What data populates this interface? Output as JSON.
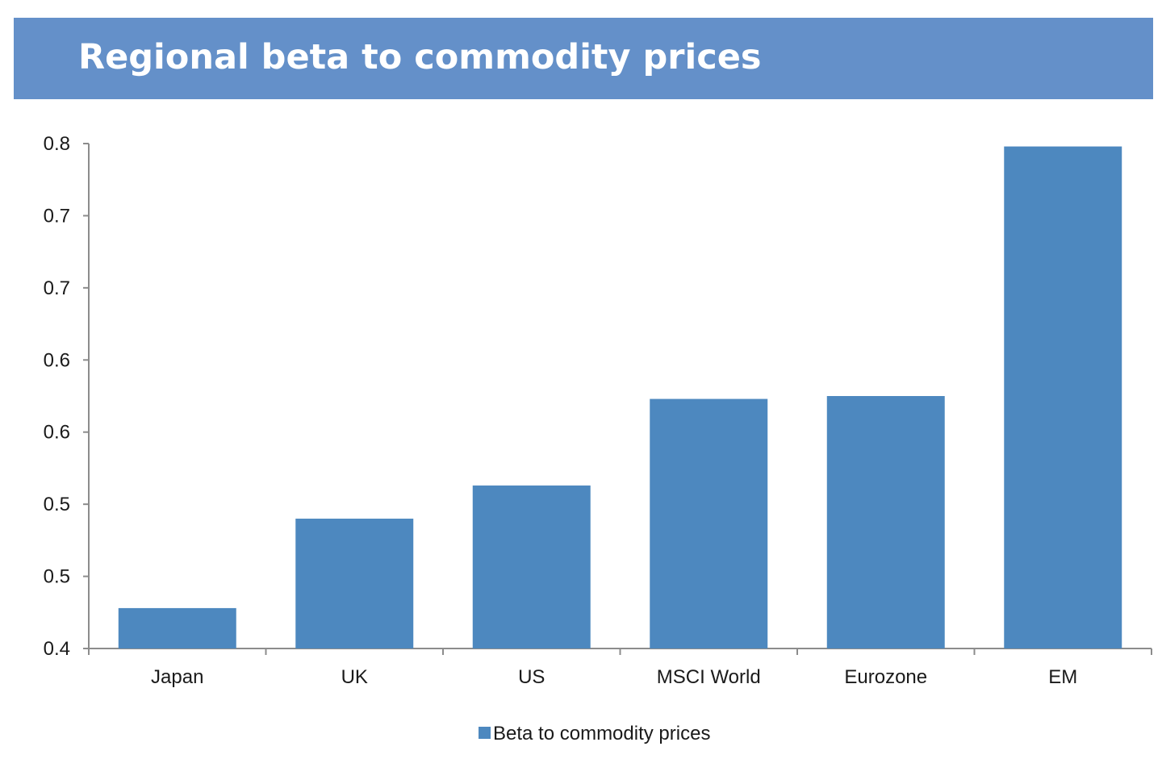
{
  "header": {
    "title": "Regional beta to commodity prices"
  },
  "colors": {
    "header_bg": "#6490c9",
    "bar": "#4d88bf",
    "axis": "#8c8c8c"
  },
  "chart_data": {
    "type": "bar",
    "title": "Regional beta to commodity prices",
    "categories": [
      "Japan",
      "UK",
      "US",
      "MSCI World",
      "Eurozone",
      "EM"
    ],
    "series": [
      {
        "name": "Beta to commodity prices",
        "values": [
          0.428,
          0.49,
          0.513,
          0.573,
          0.575,
          0.748
        ]
      }
    ],
    "xlabel": "",
    "ylabel": "",
    "ylim": [
      0.4,
      0.75
    ],
    "yticks": [
      0.4,
      0.45,
      0.5,
      0.55,
      0.6,
      0.65,
      0.7,
      0.75
    ],
    "ytick_labels": [
      "0.4",
      "0.5",
      "0.5",
      "0.6",
      "0.6",
      "0.7",
      "0.7",
      "0.8"
    ],
    "grid": false,
    "legend_position": "bottom-center"
  }
}
